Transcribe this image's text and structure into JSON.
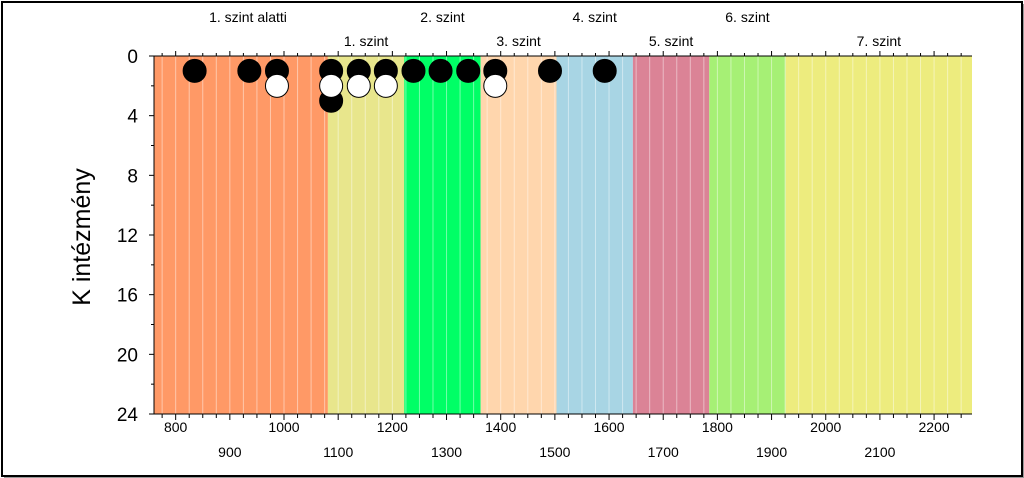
{
  "chart_data": {
    "type": "scatter",
    "ylabel": "K intézmény",
    "xlim": [
      760,
      2270
    ],
    "ylim": [
      0,
      24
    ],
    "y_reversed": true,
    "y_ticks": [
      "0",
      "4",
      "8",
      "12",
      "16",
      "20",
      "24"
    ],
    "x_ticks_upper": [
      "800",
      "1000",
      "1200",
      "1400",
      "1600",
      "1800",
      "2000",
      "2200"
    ],
    "x_ticks_lower": [
      "900",
      "1100",
      "1300",
      "1500",
      "1700",
      "1900",
      "2100"
    ],
    "levels": [
      {
        "label": "1. szint alatti",
        "from": 760,
        "to": 1081,
        "color": "#FF9966",
        "row": "top"
      },
      {
        "label": "1. szint",
        "from": 1081,
        "to": 1222,
        "color": "#E8E68C",
        "row": "bottom"
      },
      {
        "label": "2. szint",
        "from": 1222,
        "to": 1363,
        "color": "#00FF66",
        "row": "top"
      },
      {
        "label": "3. szint",
        "from": 1363,
        "to": 1503,
        "color": "#FFD6AD",
        "row": "bottom"
      },
      {
        "label": "4. szint",
        "from": 1503,
        "to": 1644,
        "color": "#A8D5E4",
        "row": "top"
      },
      {
        "label": "5. szint",
        "from": 1644,
        "to": 1785,
        "color": "#DB8396",
        "row": "bottom"
      },
      {
        "label": "6. szint",
        "from": 1785,
        "to": 1926,
        "color": "#A6F075",
        "row": "top"
      },
      {
        "label": "7. szint",
        "from": 1926,
        "to": 2270,
        "color": "#EDEC7E",
        "row": "bottom"
      }
    ],
    "series": [
      {
        "marker": "black",
        "points": [
          {
            "x": 835,
            "y": 1
          },
          {
            "x": 936,
            "y": 1
          },
          {
            "x": 987,
            "y": 1
          },
          {
            "x": 1087,
            "y": 1
          },
          {
            "x": 1087,
            "y": 3
          },
          {
            "x": 1138,
            "y": 1
          },
          {
            "x": 1188,
            "y": 1
          },
          {
            "x": 1239,
            "y": 1
          },
          {
            "x": 1289,
            "y": 1
          },
          {
            "x": 1340,
            "y": 1
          },
          {
            "x": 1390,
            "y": 1
          },
          {
            "x": 1491,
            "y": 1
          },
          {
            "x": 1592,
            "y": 1
          }
        ]
      },
      {
        "marker": "white",
        "points": [
          {
            "x": 987,
            "y": 2
          },
          {
            "x": 1087,
            "y": 2
          },
          {
            "x": 1138,
            "y": 2
          },
          {
            "x": 1188,
            "y": 2
          },
          {
            "x": 1390,
            "y": 2
          }
        ]
      }
    ]
  }
}
